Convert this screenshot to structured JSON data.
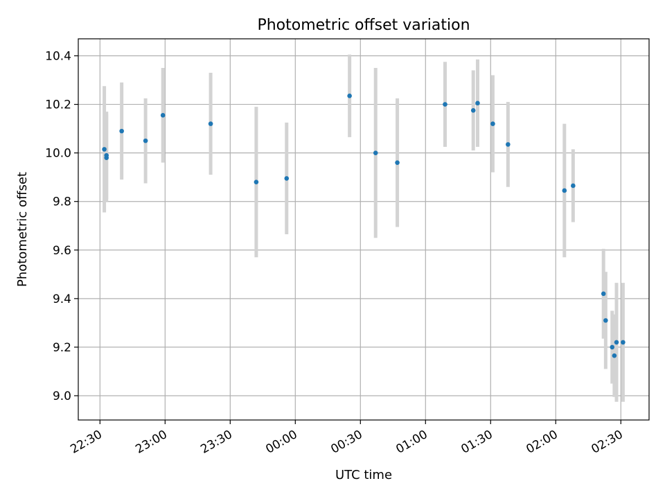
{
  "chart_data": {
    "type": "scatter",
    "title": "Photometric offset variation",
    "xlabel": "UTC time",
    "ylabel": "Photometric offset",
    "x_unit": "UTC time (HH:MM), times after midnight are next day",
    "xlim": [
      "22:20",
      "02:43"
    ],
    "ylim": [
      8.9,
      10.47
    ],
    "x_ticks": [
      "22:30",
      "23:00",
      "23:30",
      "00:00",
      "00:30",
      "01:00",
      "01:30",
      "02:00",
      "02:30"
    ],
    "y_ticks": [
      "9.0",
      "9.2",
      "9.4",
      "9.6",
      "9.8",
      "10.0",
      "10.2",
      "10.4"
    ],
    "y_tick_values": [
      9.0,
      9.2,
      9.4,
      9.6,
      9.8,
      10.0,
      10.2,
      10.4
    ],
    "grid": true,
    "colors": {
      "point": "#1f77b4",
      "errorbar": "#d3d3d3",
      "grid": "#b0b0b0"
    },
    "series": [
      {
        "points": [
          {
            "t": "22:32",
            "y": 10.015,
            "err": 0.26
          },
          {
            "t": "22:33",
            "y": 9.98,
            "err": 0.18
          },
          {
            "t": "22:33",
            "y": 9.99,
            "err": 0.18
          },
          {
            "t": "22:40",
            "y": 10.09,
            "err": 0.2
          },
          {
            "t": "22:51",
            "y": 10.05,
            "err": 0.175
          },
          {
            "t": "22:59",
            "y": 10.155,
            "err": 0.195
          },
          {
            "t": "23:21",
            "y": 10.12,
            "err": 0.21
          },
          {
            "t": "23:42",
            "y": 9.88,
            "err": 0.31
          },
          {
            "t": "23:56",
            "y": 9.895,
            "err": 0.23
          },
          {
            "t": "00:25",
            "y": 10.235,
            "err": 0.17
          },
          {
            "t": "00:37",
            "y": 10.0,
            "err": 0.35
          },
          {
            "t": "00:47",
            "y": 9.96,
            "err": 0.265
          },
          {
            "t": "01:09",
            "y": 10.2,
            "err": 0.175
          },
          {
            "t": "01:22",
            "y": 10.175,
            "err": 0.165
          },
          {
            "t": "01:24",
            "y": 10.205,
            "err": 0.18
          },
          {
            "t": "01:31",
            "y": 10.12,
            "err": 0.2
          },
          {
            "t": "01:38",
            "y": 10.035,
            "err": 0.175
          },
          {
            "t": "02:04",
            "y": 9.845,
            "err": 0.275
          },
          {
            "t": "02:08",
            "y": 9.865,
            "err": 0.15
          },
          {
            "t": "02:22",
            "y": 9.42,
            "err": 0.185
          },
          {
            "t": "02:23",
            "y": 9.31,
            "err": 0.2
          },
          {
            "t": "02:26",
            "y": 9.2,
            "err": 0.15
          },
          {
            "t": "02:27",
            "y": 9.165,
            "err": 0.17
          },
          {
            "t": "02:28",
            "y": 9.22,
            "err": 0.245
          },
          {
            "t": "02:31",
            "y": 9.22,
            "err": 0.245
          }
        ]
      }
    ]
  }
}
